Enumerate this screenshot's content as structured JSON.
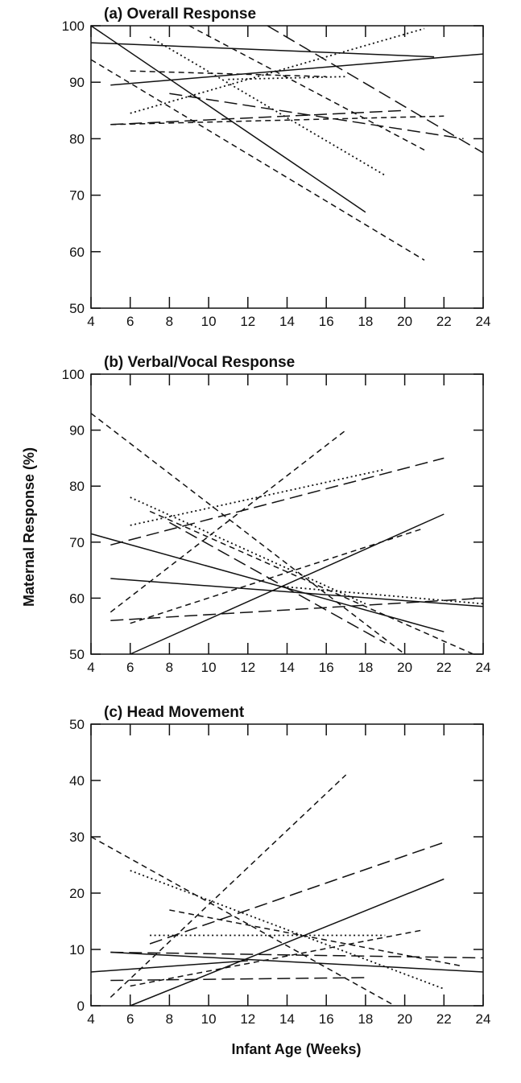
{
  "figure": {
    "ylabel": "Maternal Response (%)",
    "xlabel": "Infant Age (Weeks)"
  },
  "chart_data": [
    {
      "type": "line",
      "title": "(a) Overall Response",
      "xlim": [
        4,
        24
      ],
      "ylim": [
        50,
        100
      ],
      "xticks": [
        4,
        6,
        8,
        10,
        12,
        14,
        16,
        18,
        20,
        22,
        24
      ],
      "yticks": [
        50,
        60,
        70,
        80,
        90,
        100
      ],
      "grid": false,
      "series": [
        {
          "style": "solid",
          "x": [
            4,
            18
          ],
          "y": [
            100,
            67
          ]
        },
        {
          "style": "solid",
          "x": [
            4,
            21.5
          ],
          "y": [
            97,
            94.5
          ]
        },
        {
          "style": "solid",
          "x": [
            5,
            24
          ],
          "y": [
            89.5,
            95
          ]
        },
        {
          "style": "dashed",
          "x": [
            4,
            21
          ],
          "y": [
            94,
            58.5
          ]
        },
        {
          "style": "dashed",
          "x": [
            6,
            16
          ],
          "y": [
            92,
            91
          ]
        },
        {
          "style": "dashed",
          "x": [
            9,
            21
          ],
          "y": [
            100,
            78
          ]
        },
        {
          "style": "dashed",
          "x": [
            5,
            22
          ],
          "y": [
            82.5,
            84
          ]
        },
        {
          "style": "longdash",
          "x": [
            13,
            24
          ],
          "y": [
            100,
            77.5
          ]
        },
        {
          "style": "longdash",
          "x": [
            5,
            20
          ],
          "y": [
            82.5,
            85
          ]
        },
        {
          "style": "longdash",
          "x": [
            8,
            23
          ],
          "y": [
            88,
            80
          ]
        },
        {
          "style": "dotted",
          "x": [
            6,
            21
          ],
          "y": [
            84.5,
            99.5
          ]
        },
        {
          "style": "dotted",
          "x": [
            7,
            19
          ],
          "y": [
            98,
            73.5
          ]
        },
        {
          "style": "dotted",
          "x": [
            11,
            17
          ],
          "y": [
            90.5,
            91
          ]
        }
      ]
    },
    {
      "type": "line",
      "title": "(b) Verbal/Vocal Response",
      "xlim": [
        4,
        24
      ],
      "ylim": [
        50,
        100
      ],
      "xticks": [
        4,
        6,
        8,
        10,
        12,
        14,
        16,
        18,
        20,
        22,
        24
      ],
      "yticks": [
        50,
        60,
        70,
        80,
        90,
        100
      ],
      "grid": false,
      "series": [
        {
          "style": "solid",
          "x": [
            4,
            22
          ],
          "y": [
            71.5,
            54
          ]
        },
        {
          "style": "solid",
          "x": [
            5,
            24
          ],
          "y": [
            63.5,
            58.5
          ]
        },
        {
          "style": "solid",
          "x": [
            6,
            22
          ],
          "y": [
            50,
            75
          ]
        },
        {
          "style": "dashed",
          "x": [
            4,
            20
          ],
          "y": [
            93,
            50
          ]
        },
        {
          "style": "dashed",
          "x": [
            5,
            17
          ],
          "y": [
            57.5,
            90
          ]
        },
        {
          "style": "dashed",
          "x": [
            6,
            21
          ],
          "y": [
            55.5,
            72.5
          ]
        },
        {
          "style": "dashed",
          "x": [
            7,
            23.5
          ],
          "y": [
            75.5,
            50
          ]
        },
        {
          "style": "longdash",
          "x": [
            5,
            22
          ],
          "y": [
            69.5,
            85
          ]
        },
        {
          "style": "longdash",
          "x": [
            8,
            19
          ],
          "y": [
            73.5,
            52
          ]
        },
        {
          "style": "longdash",
          "x": [
            5,
            24
          ],
          "y": [
            56,
            60
          ]
        },
        {
          "style": "dotted",
          "x": [
            6,
            19
          ],
          "y": [
            73,
            83
          ]
        },
        {
          "style": "dotted",
          "x": [
            6,
            18
          ],
          "y": [
            78,
            59
          ]
        },
        {
          "style": "dotted",
          "x": [
            14,
            24
          ],
          "y": [
            62,
            59
          ]
        }
      ]
    },
    {
      "type": "line",
      "title": "(c) Head Movement",
      "xlim": [
        4,
        24
      ],
      "ylim": [
        0,
        50
      ],
      "xticks": [
        4,
        6,
        8,
        10,
        12,
        14,
        16,
        18,
        20,
        22,
        24
      ],
      "yticks": [
        0,
        10,
        20,
        30,
        40,
        50
      ],
      "grid": false,
      "series": [
        {
          "style": "solid",
          "x": [
            6,
            22
          ],
          "y": [
            0,
            22.5
          ]
        },
        {
          "style": "solid",
          "x": [
            4,
            12
          ],
          "y": [
            6,
            8
          ]
        },
        {
          "style": "solid",
          "x": [
            5,
            24
          ],
          "y": [
            9.5,
            6
          ]
        },
        {
          "style": "dashed",
          "x": [
            5,
            17
          ],
          "y": [
            1.5,
            41
          ]
        },
        {
          "style": "dashed",
          "x": [
            4,
            19.5
          ],
          "y": [
            30,
            0
          ]
        },
        {
          "style": "dashed",
          "x": [
            6,
            21
          ],
          "y": [
            3.5,
            13.5
          ]
        },
        {
          "style": "dashed",
          "x": [
            8,
            23
          ],
          "y": [
            17,
            7
          ]
        },
        {
          "style": "longdash",
          "x": [
            7,
            22
          ],
          "y": [
            11,
            29
          ]
        },
        {
          "style": "longdash",
          "x": [
            5,
            24
          ],
          "y": [
            9.5,
            8.5
          ]
        },
        {
          "style": "longdash",
          "x": [
            5,
            18
          ],
          "y": [
            4.5,
            5
          ]
        },
        {
          "style": "dotted",
          "x": [
            6,
            22
          ],
          "y": [
            24,
            3
          ]
        },
        {
          "style": "dotted",
          "x": [
            7,
            19
          ],
          "y": [
            12.5,
            12.5
          ]
        }
      ]
    }
  ]
}
